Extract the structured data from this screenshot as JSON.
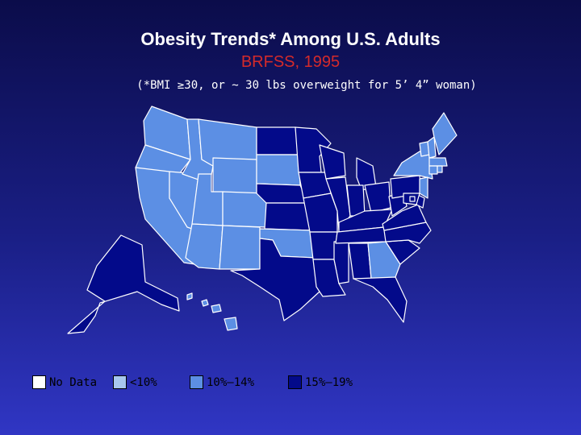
{
  "title": "Obesity Trends* Among U.S. Adults",
  "subtitle": "BRFSS, 1995",
  "note": "(*BMI ≥30, or ~ 30 lbs overweight for 5’ 4” woman)",
  "colors": {
    "background_top": "#0b0c4a",
    "background_bottom": "#3036c4",
    "title": "#ffffff",
    "subtitle": "#d42a2a",
    "no_data": "#ffffff",
    "lt10": "#a7c7ee",
    "p10_14": "#5c8fe4",
    "p15_19": "#030a8a",
    "border": "#ffffff"
  },
  "legend": [
    {
      "label": "No Data",
      "class": "no_data"
    },
    {
      "label": "<10%",
      "class": "lt10"
    },
    {
      "label": "10%–14%",
      "class": "p10_14"
    },
    {
      "label": "15%–19%",
      "class": "p15_19"
    }
  ],
  "states": {
    "WA": "p10_14",
    "OR": "p10_14",
    "CA": "p10_14",
    "NV": "p10_14",
    "ID": "p10_14",
    "MT": "p10_14",
    "WY": "p10_14",
    "UT": "p10_14",
    "CO": "p10_14",
    "AZ": "p10_14",
    "NM": "p10_14",
    "OK": "p10_14",
    "ND": "p15_19",
    "SD": "p10_14",
    "NE": "p15_19",
    "KS": "p15_19",
    "TX": "p15_19",
    "MN": "p15_19",
    "IA": "p15_19",
    "MO": "p15_19",
    "AR": "p15_19",
    "LA": "p15_19",
    "WI": "p15_19",
    "IL": "p15_19",
    "MS": "p15_19",
    "MI": "p15_19",
    "IN": "p15_19",
    "KY": "p15_19",
    "TN": "p15_19",
    "AL": "p15_19",
    "OH": "p15_19",
    "GA": "p10_14",
    "FL": "p15_19",
    "SC": "p15_19",
    "NC": "p15_19",
    "VA": "p15_19",
    "WV": "p15_19",
    "PA": "p15_19",
    "NY": "p10_14",
    "VT": "p10_14",
    "NH": "p10_14",
    "ME": "p10_14",
    "MA": "p10_14",
    "CT": "p10_14",
    "RI": "p10_14",
    "NJ": "p10_14",
    "DE": "p15_19",
    "MD": "p15_19",
    "DC": "p15_19",
    "AK": "p15_19",
    "HI": "p10_14"
  }
}
